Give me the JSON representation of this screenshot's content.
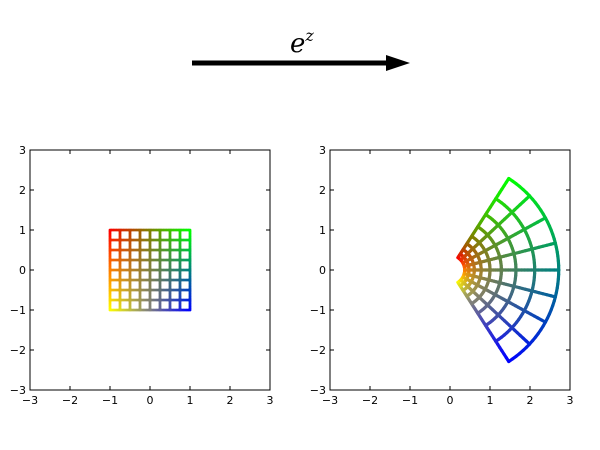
{
  "mapping_label": {
    "base": "e",
    "exponent": "z"
  },
  "colors": {
    "corner_top_left": "#ff0000",
    "corner_top_right": "#00ff00",
    "corner_bottom_left": "#ffff00",
    "corner_bottom_right": "#0000ff",
    "arrow": "#000000"
  },
  "grid": {
    "x_range": [
      -1,
      1
    ],
    "y_range": [
      -1,
      1
    ],
    "divisions": 8
  },
  "panels": [
    {
      "name": "domain",
      "transform": "identity",
      "xlim": [
        -3,
        3
      ],
      "ylim": [
        -3,
        3
      ],
      "xticks": [
        "−3",
        "−2",
        "−1",
        "0",
        "1",
        "2",
        "3"
      ],
      "yticks": [
        "−3",
        "−2",
        "−1",
        "0",
        "1",
        "2",
        "3"
      ],
      "tick_values": [
        -3,
        -2,
        -1,
        0,
        1,
        2,
        3
      ]
    },
    {
      "name": "image",
      "transform": "exp",
      "xlim": [
        -3,
        3
      ],
      "ylim": [
        -3,
        3
      ],
      "xticks": [
        "−3",
        "−2",
        "−1",
        "0",
        "1",
        "2",
        "3"
      ],
      "yticks": [
        "−3",
        "−2",
        "−1",
        "0",
        "1",
        "2",
        "3"
      ],
      "tick_values": [
        -3,
        -2,
        -1,
        0,
        1,
        2,
        3
      ]
    }
  ]
}
